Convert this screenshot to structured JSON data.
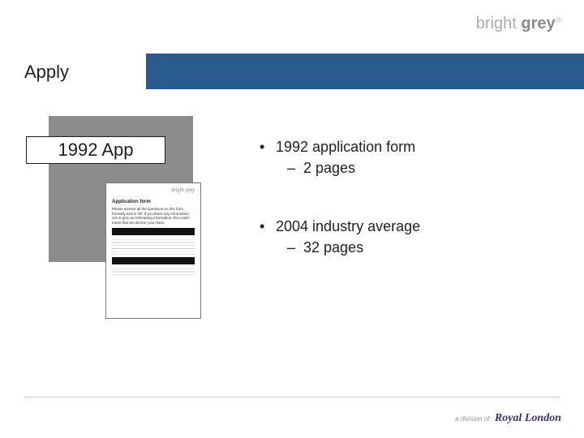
{
  "brand": {
    "top_logo_bright": "bright",
    "top_logo_grey": " grey",
    "reg": "®",
    "logo_color_light": "#adadad",
    "logo_color_dark": "#8a8a8a"
  },
  "slide": {
    "title": "Apply",
    "app_box": "1992 App",
    "title_tab_bg": "#ffffff",
    "blue_bar_color": "#2a5b8f",
    "grey_block_color": "#8c8c8c"
  },
  "bullets": {
    "g1": {
      "main": "1992 application form",
      "sub": "2 pages"
    },
    "g2": {
      "main": "2004 industry average",
      "sub": "32 pages"
    }
  },
  "doc_thumb": {
    "logo": "bright grey",
    "title": "Application form",
    "para": "Please answer all the questions on this form honestly and in full. If you leave any information out or give us misleading information, this could mean that we decline your claim."
  },
  "footer": {
    "adiv": "a division of",
    "royal": "Royal London",
    "rule_color": "#c9c9c9",
    "royal_color": "#3c2f6e"
  }
}
